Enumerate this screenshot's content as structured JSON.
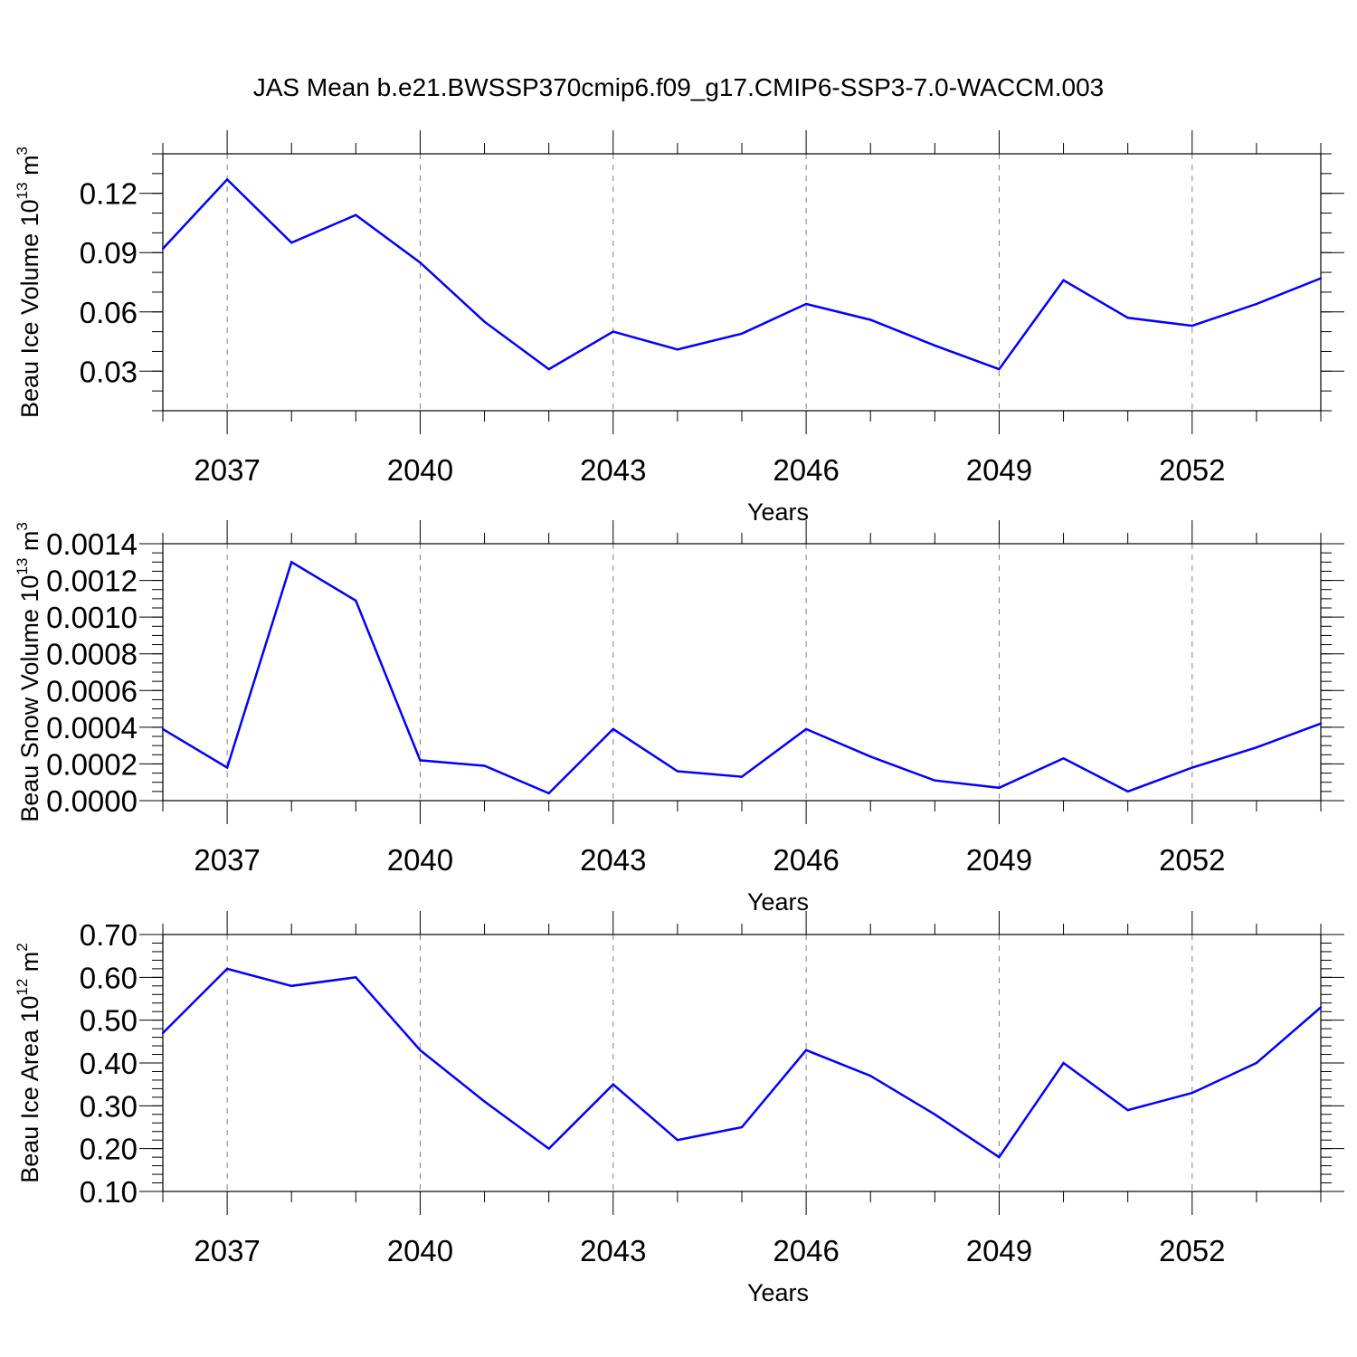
{
  "title": "JAS Mean b.e21.BWSSP370cmip6.f09_g17.CMIP6-SSP3-7.0-WACCM.003",
  "colors": {
    "line": "#0000ff",
    "axes": "#000000",
    "grid": "#808080",
    "background": "#ffffff"
  },
  "chart_data": [
    {
      "type": "line",
      "title": "",
      "xlabel": "Years",
      "ylabel": {
        "text": "Beau Ice Volume 10",
        "sup": "13",
        "unit": " m",
        "unit_sup": "3"
      },
      "xlim": [
        2036,
        2054
      ],
      "ylim": [
        0.01,
        0.14
      ],
      "x_major_ticks": [
        2037,
        2040,
        2043,
        2046,
        2049,
        2052
      ],
      "x_tick_labels": [
        "2037",
        "2040",
        "2043",
        "2046",
        "2049",
        "2052"
      ],
      "y_major_ticks": [
        0.03,
        0.06,
        0.09,
        0.12
      ],
      "y_tick_labels": [
        "0.03",
        "0.06",
        "0.09",
        "0.12"
      ],
      "y_minor_step": 0.01,
      "grid": "vertical dashed at major x ticks",
      "x": [
        2036,
        2037,
        2038,
        2039,
        2040,
        2041,
        2042,
        2043,
        2044,
        2045,
        2046,
        2047,
        2048,
        2049,
        2050,
        2051,
        2052,
        2053,
        2054
      ],
      "series": [
        {
          "values": [
            0.092,
            0.127,
            0.095,
            0.109,
            0.085,
            0.055,
            0.031,
            0.05,
            0.041,
            0.049,
            0.064,
            0.056,
            0.043,
            0.031,
            0.076,
            0.057,
            0.053,
            0.064,
            0.077
          ]
        }
      ]
    },
    {
      "type": "line",
      "title": "",
      "xlabel": "Years",
      "ylabel": {
        "text": "Beau Snow Volume 10",
        "sup": "13",
        "unit": " m",
        "unit_sup": "3"
      },
      "xlim": [
        2036,
        2054
      ],
      "ylim": [
        0.0,
        0.0014
      ],
      "x_major_ticks": [
        2037,
        2040,
        2043,
        2046,
        2049,
        2052
      ],
      "x_tick_labels": [
        "2037",
        "2040",
        "2043",
        "2046",
        "2049",
        "2052"
      ],
      "y_major_ticks": [
        0.0,
        0.0002,
        0.0004,
        0.0006,
        0.0008,
        0.001,
        0.0012,
        0.0014
      ],
      "y_tick_labels": [
        "0.0000",
        "0.0002",
        "0.0004",
        "0.0006",
        "0.0008",
        "0.0010",
        "0.0012",
        "0.0014"
      ],
      "y_minor_step": 5e-05,
      "grid": "vertical dashed at major x ticks",
      "x": [
        2036,
        2037,
        2038,
        2039,
        2040,
        2041,
        2042,
        2043,
        2044,
        2045,
        2046,
        2047,
        2048,
        2049,
        2050,
        2051,
        2052,
        2053,
        2054
      ],
      "series": [
        {
          "values": [
            0.00039,
            0.00018,
            0.0013,
            0.00109,
            0.00022,
            0.00019,
            4e-05,
            0.00039,
            0.00016,
            0.00013,
            0.00039,
            0.00024,
            0.00011,
            7e-05,
            0.00023,
            5e-05,
            0.00018,
            0.00029,
            0.00042
          ]
        }
      ]
    },
    {
      "type": "line",
      "title": "",
      "xlabel": "Years",
      "ylabel": {
        "text": "Beau Ice Area 10",
        "sup": "12",
        "unit": " m",
        "unit_sup": "2"
      },
      "xlim": [
        2036,
        2054
      ],
      "ylim": [
        0.1,
        0.7
      ],
      "x_major_ticks": [
        2037,
        2040,
        2043,
        2046,
        2049,
        2052
      ],
      "x_tick_labels": [
        "2037",
        "2040",
        "2043",
        "2046",
        "2049",
        "2052"
      ],
      "y_major_ticks": [
        0.1,
        0.2,
        0.3,
        0.4,
        0.5,
        0.6,
        0.7
      ],
      "y_tick_labels": [
        "0.10",
        "0.20",
        "0.30",
        "0.40",
        "0.50",
        "0.60",
        "0.70"
      ],
      "y_minor_step": 0.02,
      "grid": "vertical dashed at major x ticks",
      "x": [
        2036,
        2037,
        2038,
        2039,
        2040,
        2041,
        2042,
        2043,
        2044,
        2045,
        2046,
        2047,
        2048,
        2049,
        2050,
        2051,
        2052,
        2053,
        2054
      ],
      "series": [
        {
          "values": [
            0.47,
            0.62,
            0.58,
            0.6,
            0.43,
            0.31,
            0.2,
            0.35,
            0.22,
            0.25,
            0.43,
            0.37,
            0.28,
            0.18,
            0.4,
            0.29,
            0.33,
            0.4,
            0.53
          ]
        }
      ]
    }
  ]
}
